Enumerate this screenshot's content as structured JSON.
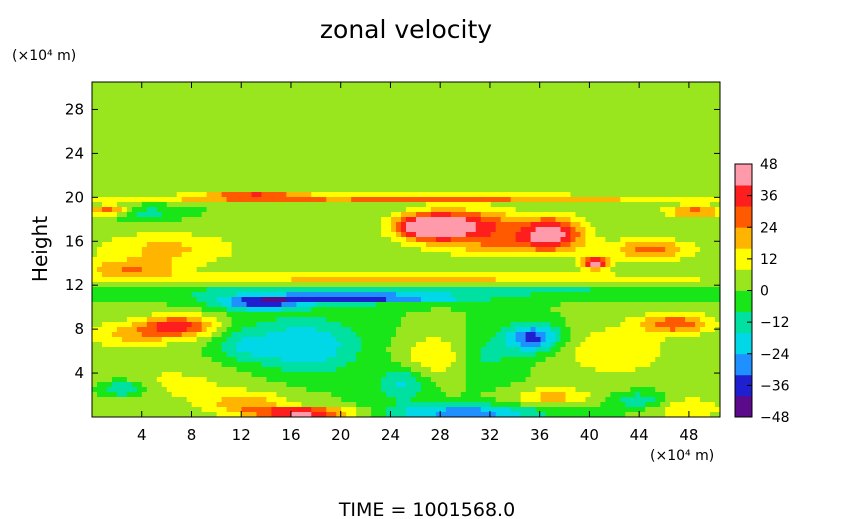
{
  "chart_data": {
    "type": "heatmap",
    "title": "zonal velocity",
    "ylabel": "Height",
    "xlabel": "",
    "x_units": "(×10⁴ m)",
    "y_units": "(×10⁴ m)",
    "xlim": [
      0,
      50.5
    ],
    "ylim": [
      0,
      30.5
    ],
    "x_ticks": [
      4,
      8,
      12,
      16,
      20,
      24,
      28,
      32,
      36,
      40,
      44,
      48
    ],
    "y_ticks": [
      4,
      8,
      12,
      16,
      20,
      24,
      28
    ],
    "colorbar": {
      "min": -48,
      "max": 48,
      "ticks": [
        48,
        36,
        24,
        12,
        0,
        -12,
        -24,
        -36,
        -48
      ],
      "colors": [
        "#5a0a8a",
        "#1f1fd0",
        "#1e90ff",
        "#00d8e8",
        "#00e0a0",
        "#19e619",
        "#9ae61e",
        "#ffff00",
        "#ffb400",
        "#ff5a00",
        "#ff1e1e",
        "#ff9aaa"
      ]
    },
    "field": {
      "background": 0,
      "blobs": [
        {
          "x": 25.5,
          "y": 21.5,
          "sx": 30,
          "sy": 1.4,
          "v": 2
        },
        {
          "x": 25.5,
          "y": 19.9,
          "sx": 26,
          "sy": 0.35,
          "v": 26
        },
        {
          "x": 13,
          "y": 20.1,
          "sx": 4,
          "sy": 0.25,
          "v": 36
        },
        {
          "x": 27,
          "y": 17.3,
          "sx": 2.6,
          "sy": 1.1,
          "v": 46
        },
        {
          "x": 30,
          "y": 17.6,
          "sx": 4.5,
          "sy": 1.4,
          "v": 34
        },
        {
          "x": 37,
          "y": 16.8,
          "sx": 2.5,
          "sy": 1.5,
          "v": 38
        },
        {
          "x": 40.5,
          "y": 14,
          "sx": 1.1,
          "sy": 0.6,
          "v": 44
        },
        {
          "x": 33,
          "y": 15.8,
          "sx": 6,
          "sy": 1.4,
          "v": 20
        },
        {
          "x": 45,
          "y": 15.2,
          "sx": 3.5,
          "sy": 1,
          "v": 26
        },
        {
          "x": 6,
          "y": 15.3,
          "sx": 6,
          "sy": 1.6,
          "v": 18
        },
        {
          "x": 3,
          "y": 13.5,
          "sx": 4,
          "sy": 0.8,
          "v": 20
        },
        {
          "x": 1.5,
          "y": 18.8,
          "sx": 1.8,
          "sy": 0.5,
          "v": 30
        },
        {
          "x": 48.5,
          "y": 18.7,
          "sx": 2.5,
          "sy": 0.6,
          "v": 28
        },
        {
          "x": 4,
          "y": 18.6,
          "sx": 2.5,
          "sy": 0.6,
          "v": -14
        },
        {
          "x": 24,
          "y": 12.6,
          "sx": 28,
          "sy": 0.55,
          "v": 18
        },
        {
          "x": 25,
          "y": 11.5,
          "sx": 28,
          "sy": 0.5,
          "v": -12
        },
        {
          "x": 21,
          "y": 10.8,
          "sx": 9,
          "sy": 0.45,
          "v": -36
        },
        {
          "x": 13.5,
          "y": 10.3,
          "sx": 3.5,
          "sy": 0.6,
          "v": -32
        },
        {
          "x": 7,
          "y": 8.3,
          "sx": 3,
          "sy": 1,
          "v": 34
        },
        {
          "x": 47,
          "y": 8.5,
          "sx": 3,
          "sy": 0.9,
          "v": 30
        },
        {
          "x": 3,
          "y": 7.5,
          "sx": 4,
          "sy": 1.2,
          "v": 18
        },
        {
          "x": 17,
          "y": 6.5,
          "sx": 4.5,
          "sy": 2.5,
          "v": -24
        },
        {
          "x": 12,
          "y": 6.5,
          "sx": 2,
          "sy": 1.5,
          "v": -12
        },
        {
          "x": 35.5,
          "y": 7.2,
          "sx": 2.2,
          "sy": 1.3,
          "v": -36
        },
        {
          "x": 31,
          "y": 5.5,
          "sx": 3,
          "sy": 2,
          "v": -14
        },
        {
          "x": 28,
          "y": 5.5,
          "sx": 3,
          "sy": 2,
          "v": 20
        },
        {
          "x": 42,
          "y": 6,
          "sx": 5,
          "sy": 2.5,
          "v": 14
        },
        {
          "x": 6,
          "y": 3,
          "sx": 8,
          "sy": 2,
          "v": 10
        },
        {
          "x": 2.5,
          "y": 2.6,
          "sx": 2,
          "sy": 0.8,
          "v": -24
        },
        {
          "x": 25,
          "y": 3,
          "sx": 2,
          "sy": 1.6,
          "v": -18
        },
        {
          "x": 17,
          "y": 0.4,
          "sx": 4,
          "sy": 0.45,
          "v": 46
        },
        {
          "x": 12.5,
          "y": 1.2,
          "sx": 3.5,
          "sy": 1,
          "v": 20
        },
        {
          "x": 30,
          "y": 0.4,
          "sx": 6,
          "sy": 0.7,
          "v": -30
        },
        {
          "x": 37,
          "y": 1.8,
          "sx": 3,
          "sy": 0.8,
          "v": 20
        },
        {
          "x": 44,
          "y": 1.5,
          "sx": 2,
          "sy": 0.7,
          "v": -18
        },
        {
          "x": 48,
          "y": 0.8,
          "sx": 3,
          "sy": 1,
          "v": 16
        }
      ]
    }
  },
  "time_label": "TIME = 1001568.0"
}
